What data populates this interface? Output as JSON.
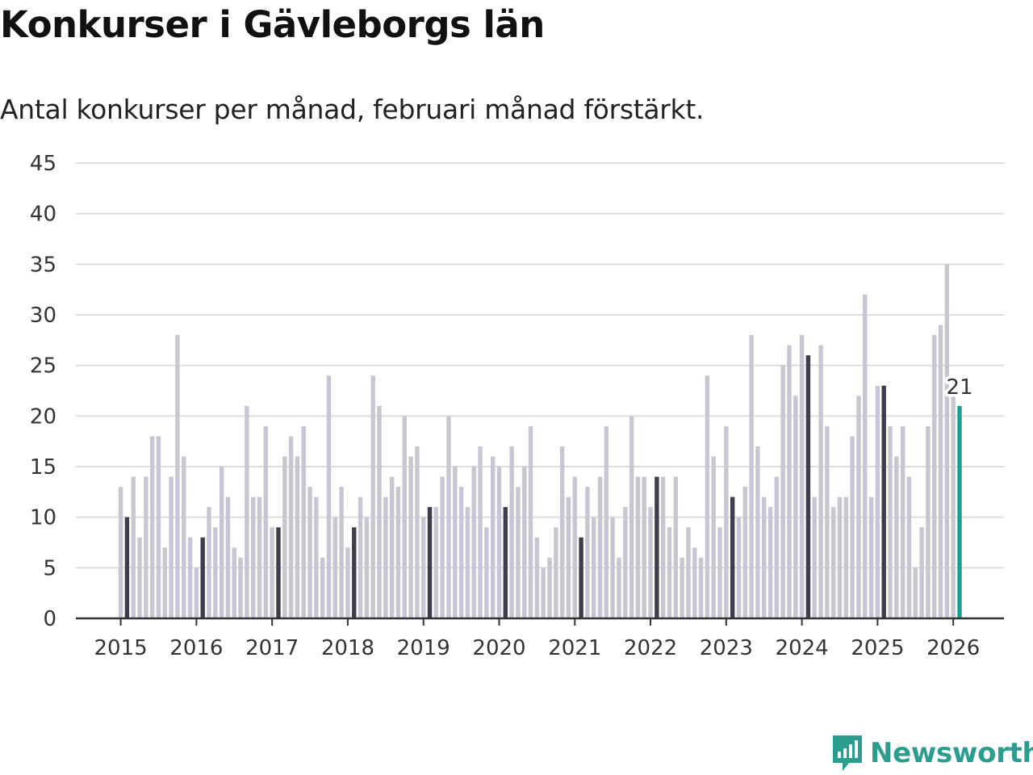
{
  "chart_data": {
    "type": "bar",
    "title": "Konkurser i Gävleborgs län",
    "subtitle": "Antal konkurser per månad, februari månad förstärkt.",
    "xlabel": "",
    "ylabel": "",
    "ylim": [
      0,
      45
    ],
    "yticks": [
      "0",
      "5",
      "10",
      "15",
      "20",
      "25",
      "30",
      "35",
      "40",
      "45"
    ],
    "year_labels": [
      "2015",
      "2016",
      "2017",
      "2018",
      "2019",
      "2020",
      "2021",
      "2022",
      "2023",
      "2024",
      "2025",
      "2026"
    ],
    "start": {
      "year": 2015,
      "month": 1
    },
    "highlight_month": 2,
    "last_value_label": "21",
    "values": [
      13,
      10,
      14,
      8,
      14,
      18,
      18,
      7,
      14,
      28,
      16,
      8,
      5,
      8,
      11,
      9,
      15,
      12,
      7,
      6,
      21,
      12,
      12,
      19,
      9,
      9,
      16,
      18,
      16,
      19,
      13,
      12,
      6,
      24,
      10,
      13,
      7,
      9,
      12,
      10,
      24,
      21,
      12,
      14,
      13,
      20,
      16,
      17,
      10,
      11,
      11,
      14,
      20,
      15,
      13,
      11,
      15,
      17,
      9,
      16,
      15,
      11,
      17,
      13,
      15,
      19,
      8,
      5,
      6,
      9,
      17,
      12,
      14,
      8,
      13,
      10,
      14,
      19,
      10,
      6,
      11,
      20,
      14,
      14,
      11,
      14,
      14,
      9,
      14,
      6,
      9,
      7,
      6,
      24,
      16,
      9,
      19,
      12,
      10,
      13,
      28,
      17,
      12,
      11,
      14,
      25,
      27,
      22,
      28,
      26,
      12,
      27,
      19,
      11,
      12,
      12,
      18,
      22,
      32,
      12,
      23,
      23,
      19,
      16,
      19,
      14,
      5,
      9,
      19,
      28,
      29,
      35,
      22,
      21
    ],
    "colors": {
      "bar": "#c7c6d3",
      "february": "#3f3d4b",
      "latest": "#1a9e8f",
      "grid": "#dddddd",
      "axis": "#333333"
    }
  },
  "brand": {
    "name": "Newsworthy",
    "color": "#2a9d8f",
    "icon": "newsworthy-logo-icon"
  }
}
